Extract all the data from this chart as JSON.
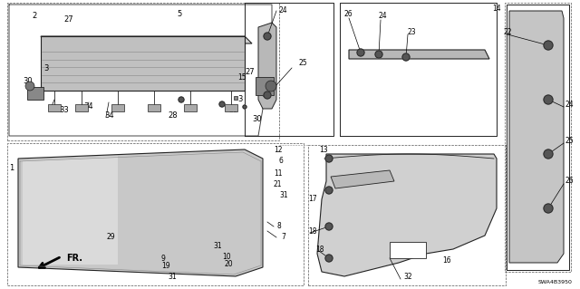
{
  "diagram_code": "SWA4B3950",
  "bg_color": "#ffffff",
  "fig_width": 6.4,
  "fig_height": 3.19,
  "dpi": 100
}
